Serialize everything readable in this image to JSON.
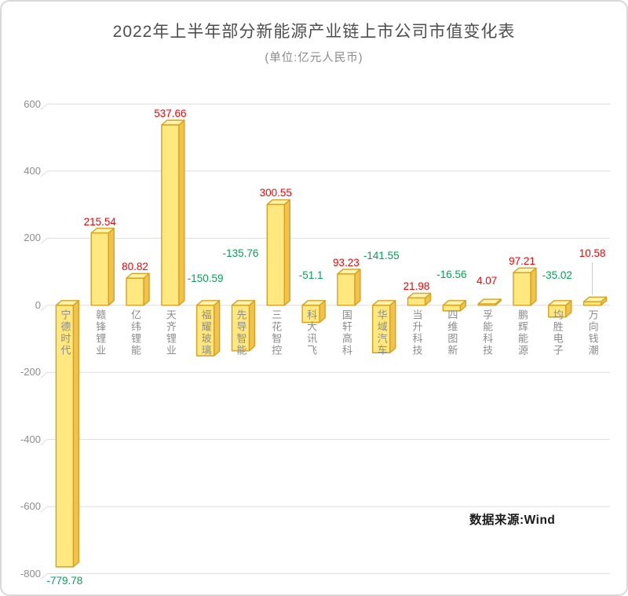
{
  "page": {
    "title": "2022年上半年部分新能源产业链上市公司市值变化表",
    "subtitle": "(单位:亿元人民币)",
    "source_note": "数据来源:Wind"
  },
  "chart_data": {
    "type": "bar",
    "title": "2022年上半年部分新能源产业链上市公司市值变化表",
    "subtitle": "(单位:亿元人民币)",
    "unit": "亿元人民币",
    "source": "数据来源:Wind",
    "categories": [
      "宁德时代",
      "赣锋锂业",
      "亿纬锂能",
      "天齐锂业",
      "福耀玻璃",
      "先导智能",
      "三花智控",
      "科大讯飞",
      "国轩高科",
      "华域汽车",
      "当升科技",
      "四维图新",
      "孚能科技",
      "鹏辉能源",
      "均胜电子",
      "万向钱潮"
    ],
    "values": [
      -779.78,
      215.54,
      80.82,
      537.66,
      -150.59,
      -135.76,
      300.55,
      -51.1,
      93.23,
      -141.55,
      21.98,
      -16.56,
      4.07,
      97.21,
      -35.02,
      10.58
    ],
    "ylim": [
      -800,
      600
    ],
    "y_ticks": [
      600,
      400,
      200,
      0,
      -200,
      -400,
      -600,
      -800
    ],
    "grid": true,
    "bar_style": "3d",
    "legend": "none",
    "colors": {
      "bar_fill": "#FFE87F",
      "bar_top": "#FFF3AE",
      "bar_side": "#F1C34C",
      "bar_stroke": "#D7A11E",
      "positive_label": "#FF0000",
      "negative_label": "#00A651",
      "axis_text": "#8C8C8C",
      "gridline": "#DEDEDE",
      "title_text": "#4D4D4D"
    }
  }
}
